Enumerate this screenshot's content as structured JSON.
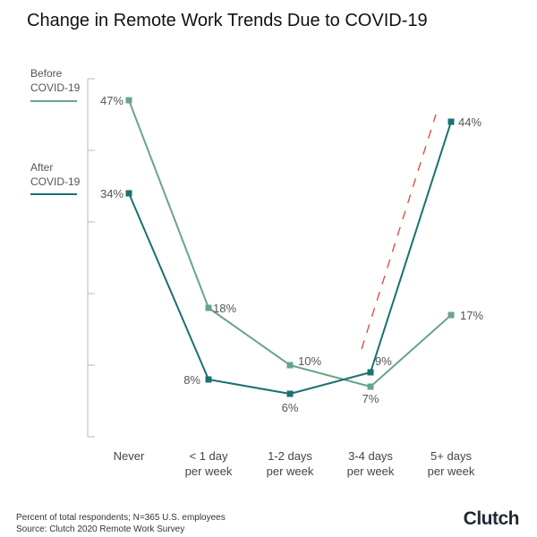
{
  "chart_data": {
    "type": "line",
    "title": "Change in Remote Work Trends Due to COVID-19",
    "xlabel": "",
    "ylabel": "",
    "categories": [
      "Never",
      "< 1 day\nper week",
      "1-2 days\nper week",
      "3-4 days\nper week",
      "5+ days\nper week"
    ],
    "series": [
      {
        "name": "Before\nCOVID-19",
        "values": [
          47,
          18,
          10,
          7,
          17
        ],
        "labels": [
          "47%",
          "18%",
          "10%",
          "7%",
          "17%"
        ],
        "color": "#6aa38c"
      },
      {
        "name": "After\nCOVID-19",
        "values": [
          34,
          8,
          6,
          9,
          44
        ],
        "labels": [
          "34%",
          "8%",
          "6%",
          "9%",
          "44%"
        ],
        "color": "#1c6f73"
      }
    ],
    "ylim": [
      0,
      50
    ],
    "grid": false,
    "legend": "left",
    "annotation": {
      "type": "dashed-trend-line",
      "color": "#e0453a"
    }
  },
  "footnote": {
    "line1": "Percent of total respondents; N=365 U.S. employees",
    "line2": "Source: Clutch 2020 Remote Work Survey"
  },
  "brand": "Clutch"
}
